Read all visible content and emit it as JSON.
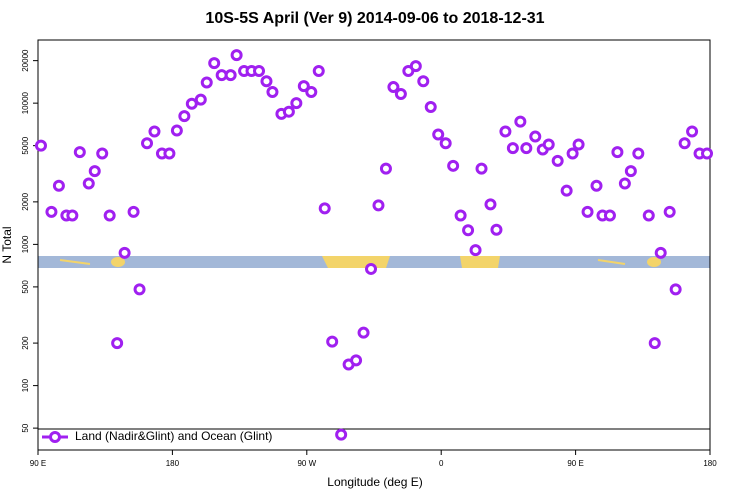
{
  "chart_data": {
    "type": "scatter",
    "title": "10S-5S April (Ver 9)   2014-09-06 to 2018-12-31",
    "x_label": "Longitude (deg E)",
    "y_label": "N Total",
    "xlim": [
      90,
      540
    ],
    "xticks": [
      {
        "value": 90,
        "label": "90 E"
      },
      {
        "value": 180,
        "label": "180"
      },
      {
        "value": 270,
        "label": "90 W"
      },
      {
        "value": 360,
        "label": "0"
      },
      {
        "value": 450,
        "label": "90 E"
      },
      {
        "value": 540,
        "label": "180"
      }
    ],
    "ylim": [
      35,
      28000
    ],
    "ylog": true,
    "yticks": [
      50,
      100,
      200,
      500,
      1000,
      2000,
      5000,
      10000,
      20000
    ],
    "series": [
      {
        "name": "Land (Nadir&Glint) and Ocean (Glint)",
        "color": "#a020f0",
        "x": [
          92,
          99,
          104,
          109,
          113,
          118,
          124,
          128,
          133,
          138,
          143,
          148,
          154,
          158,
          163,
          168,
          173,
          178,
          183,
          188,
          193,
          199,
          203,
          208,
          213,
          219,
          223,
          228,
          233,
          238,
          243,
          247,
          253,
          258,
          263,
          268,
          273,
          278,
          282,
          287,
          293,
          298,
          303,
          308,
          313,
          318,
          323,
          328,
          333,
          338,
          343,
          348,
          353,
          358,
          363,
          368,
          373,
          378,
          383,
          387,
          393,
          397,
          403,
          408,
          413,
          417,
          423,
          428,
          432,
          438,
          444,
          448,
          452,
          458,
          464,
          468,
          473,
          478,
          483,
          487,
          492,
          499,
          503,
          507,
          513,
          517,
          523,
          528,
          533,
          538
        ],
        "values": [
          5000,
          1700,
          2600,
          1600,
          1600,
          4500,
          2700,
          3300,
          4400,
          1600,
          200,
          870,
          1700,
          480,
          5200,
          6300,
          4400,
          4400,
          6400,
          8100,
          9900,
          10600,
          14000,
          19200,
          15800,
          15800,
          21900,
          16900,
          16900,
          16900,
          14300,
          12000,
          8400,
          8700,
          10000,
          13200,
          12000,
          16900,
          1800,
          205,
          45,
          141,
          151,
          237,
          670,
          1890,
          3440,
          13000,
          11600,
          16900,
          18300,
          14300,
          9400,
          6000,
          5200,
          3600,
          1600,
          1260,
          910,
          3440,
          1920,
          1270,
          6300,
          4800,
          7400,
          4800,
          5800,
          4700,
          5100,
          3900,
          2400,
          4400,
          5100,
          1700,
          2600,
          1600,
          1600,
          4500,
          2700,
          3300,
          4400,
          1600,
          200,
          870,
          1700,
          480,
          5200,
          6300,
          4400,
          4400
        ]
      }
    ]
  }
}
